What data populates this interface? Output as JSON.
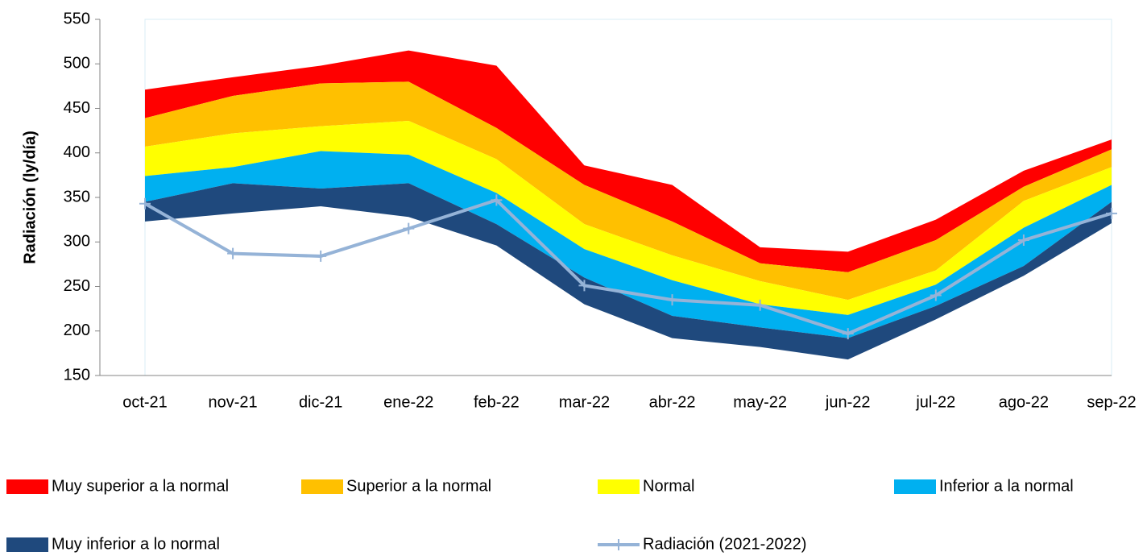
{
  "chart_data": {
    "type": "area",
    "y_label": "Radiación (ly/día)",
    "categories": [
      "oct-21",
      "nov-21",
      "dic-21",
      "ene-22",
      "feb-22",
      "mar-22",
      "abr-22",
      "may-22",
      "jun-22",
      "jul-22",
      "ago-22",
      "sep-22"
    ],
    "ylim": [
      150,
      550
    ],
    "yticks": [
      150,
      200,
      250,
      300,
      350,
      400,
      450,
      500,
      550
    ],
    "grid": false,
    "series": [
      {
        "name": "Muy superior a la normal",
        "color": "#ff0000",
        "type": "area",
        "values": [
          471,
          485,
          498,
          515,
          498,
          386,
          364,
          294,
          289,
          325,
          380,
          415
        ]
      },
      {
        "name": "Superior a la normal",
        "color": "#ffc000",
        "type": "area",
        "values": [
          439,
          464,
          478,
          480,
          428,
          364,
          323,
          276,
          266,
          302,
          362,
          404
        ]
      },
      {
        "name": "Normal",
        "color": "#ffff00",
        "type": "area",
        "values": [
          407,
          422,
          430,
          436,
          393,
          320,
          285,
          256,
          235,
          268,
          346,
          384
        ]
      },
      {
        "name": "Inferior a la normal",
        "color": "#00b0f0",
        "type": "area",
        "values": [
          374,
          384,
          402,
          398,
          355,
          292,
          257,
          230,
          218,
          252,
          316,
          364
        ]
      },
      {
        "name": "Muy inferior a lo normal",
        "color": "#1f497d",
        "type": "area",
        "values": [
          345,
          366,
          360,
          366,
          320,
          260,
          217,
          204,
          192,
          228,
          273,
          345
        ],
        "lower": [
          323,
          332,
          340,
          328,
          296,
          230,
          192,
          182,
          168,
          213,
          262,
          321
        ]
      },
      {
        "name": "Radiación (2021-2022)",
        "color": "#95b3d7",
        "type": "line",
        "values": [
          343,
          287,
          284,
          315,
          347,
          251,
          235,
          229,
          197,
          240,
          302,
          332
        ]
      }
    ]
  }
}
